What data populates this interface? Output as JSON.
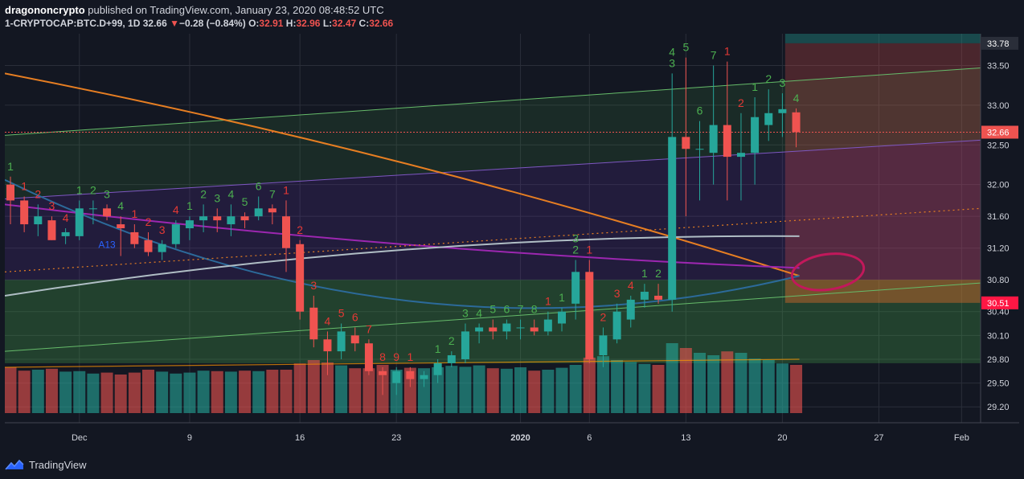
{
  "header": {
    "author": "dragononcrypto",
    "published_text": "published on TradingView.com, January 23, 2020 08:48:52 UTC",
    "symbol": "1-CRYPTOCAP:BTC.D+99, 1D",
    "last": "32.66",
    "change_arrow": "▼",
    "change": "−0.28 (−0.84%)",
    "o_label": "O:",
    "o": "32.91",
    "h_label": "H:",
    "h": "32.96",
    "l_label": "L:",
    "l": "32.47",
    "c_label": "C:",
    "c": "32.66"
  },
  "footer": {
    "brand": "TradingView",
    "logo_icon": "tradingview-logo-icon"
  },
  "colors": {
    "up": "#26a69a",
    "down": "#ef5350",
    "background": "#131722"
  },
  "chart_data": {
    "type": "candlestick",
    "title": "",
    "ylim": [
      29.0,
      33.9
    ],
    "y_ticks": [
      "33.50",
      "33.00",
      "32.50",
      "32.00",
      "31.60",
      "31.20",
      "30.80",
      "30.40",
      "30.10",
      "29.80",
      "29.50",
      "29.20"
    ],
    "x_ticks": [
      "Dec",
      "9",
      "16",
      "23",
      "2020",
      "6",
      "13",
      "20",
      "27",
      "Feb"
    ],
    "price_labels": [
      {
        "text": "33.78",
        "value": 33.78,
        "highlight": "none"
      },
      {
        "text": "32.66",
        "value": 32.66,
        "highlight": "last"
      },
      {
        "text": "30.51",
        "value": 30.51,
        "highlight": "target"
      }
    ],
    "candles": [
      {
        "o": 32.0,
        "h": 32.1,
        "l": 31.5,
        "c": 31.8
      },
      {
        "o": 31.8,
        "h": 31.85,
        "l": 31.4,
        "c": 31.5
      },
      {
        "o": 31.5,
        "h": 31.75,
        "l": 31.35,
        "c": 31.6
      },
      {
        "o": 31.55,
        "h": 31.6,
        "l": 31.3,
        "c": 31.3
      },
      {
        "o": 31.35,
        "h": 31.45,
        "l": 31.25,
        "c": 31.4
      },
      {
        "o": 31.35,
        "h": 31.8,
        "l": 31.3,
        "c": 31.7
      },
      {
        "o": 31.7,
        "h": 31.8,
        "l": 31.5,
        "c": 31.7
      },
      {
        "o": 31.7,
        "h": 31.75,
        "l": 31.55,
        "c": 31.6
      },
      {
        "o": 31.5,
        "h": 31.6,
        "l": 31.1,
        "c": 31.45
      },
      {
        "o": 31.4,
        "h": 31.5,
        "l": 31.2,
        "c": 31.25
      },
      {
        "o": 31.3,
        "h": 31.4,
        "l": 31.1,
        "c": 31.15
      },
      {
        "o": 31.15,
        "h": 31.3,
        "l": 31.05,
        "c": 31.25
      },
      {
        "o": 31.25,
        "h": 31.55,
        "l": 31.2,
        "c": 31.5
      },
      {
        "o": 31.45,
        "h": 31.6,
        "l": 31.3,
        "c": 31.55
      },
      {
        "o": 31.55,
        "h": 31.75,
        "l": 31.4,
        "c": 31.6
      },
      {
        "o": 31.6,
        "h": 31.7,
        "l": 31.4,
        "c": 31.55
      },
      {
        "o": 31.5,
        "h": 31.75,
        "l": 31.35,
        "c": 31.6
      },
      {
        "o": 31.6,
        "h": 31.65,
        "l": 31.45,
        "c": 31.55
      },
      {
        "o": 31.6,
        "h": 31.85,
        "l": 31.55,
        "c": 31.7
      },
      {
        "o": 31.7,
        "h": 31.75,
        "l": 31.5,
        "c": 31.65
      },
      {
        "o": 31.6,
        "h": 31.8,
        "l": 30.9,
        "c": 31.2
      },
      {
        "o": 31.25,
        "h": 31.3,
        "l": 30.3,
        "c": 30.4
      },
      {
        "o": 30.45,
        "h": 30.6,
        "l": 29.95,
        "c": 30.05
      },
      {
        "o": 30.05,
        "h": 30.15,
        "l": 29.6,
        "c": 29.9
      },
      {
        "o": 29.9,
        "h": 30.25,
        "l": 29.8,
        "c": 30.15
      },
      {
        "o": 30.1,
        "h": 30.2,
        "l": 29.9,
        "c": 30.0
      },
      {
        "o": 30.0,
        "h": 30.05,
        "l": 29.6,
        "c": 29.65
      },
      {
        "o": 29.65,
        "h": 29.7,
        "l": 29.35,
        "c": 29.6
      },
      {
        "o": 29.5,
        "h": 29.7,
        "l": 29.35,
        "c": 29.65
      },
      {
        "o": 29.65,
        "h": 29.7,
        "l": 29.45,
        "c": 29.55
      },
      {
        "o": 29.55,
        "h": 29.65,
        "l": 29.45,
        "c": 29.6
      },
      {
        "o": 29.6,
        "h": 29.8,
        "l": 29.5,
        "c": 29.75
      },
      {
        "o": 29.75,
        "h": 29.9,
        "l": 29.7,
        "c": 29.85
      },
      {
        "o": 29.8,
        "h": 30.25,
        "l": 29.75,
        "c": 30.15
      },
      {
        "o": 30.15,
        "h": 30.25,
        "l": 30.0,
        "c": 30.2
      },
      {
        "o": 30.2,
        "h": 30.3,
        "l": 30.05,
        "c": 30.15
      },
      {
        "o": 30.15,
        "h": 30.3,
        "l": 30.05,
        "c": 30.25
      },
      {
        "o": 30.2,
        "h": 30.3,
        "l": 30.05,
        "c": 30.2
      },
      {
        "o": 30.2,
        "h": 30.3,
        "l": 30.1,
        "c": 30.15
      },
      {
        "o": 30.15,
        "h": 30.4,
        "l": 30.1,
        "c": 30.3
      },
      {
        "o": 30.25,
        "h": 30.45,
        "l": 30.15,
        "c": 30.4
      },
      {
        "o": 30.5,
        "h": 31.05,
        "l": 30.3,
        "c": 30.9
      },
      {
        "o": 30.9,
        "h": 31.05,
        "l": 29.75,
        "c": 29.8
      },
      {
        "o": 29.85,
        "h": 30.2,
        "l": 29.7,
        "c": 30.1
      },
      {
        "o": 30.05,
        "h": 30.5,
        "l": 30.0,
        "c": 30.4
      },
      {
        "o": 30.3,
        "h": 30.6,
        "l": 30.2,
        "c": 30.55
      },
      {
        "o": 30.55,
        "h": 30.75,
        "l": 30.45,
        "c": 30.65
      },
      {
        "o": 30.6,
        "h": 30.75,
        "l": 30.5,
        "c": 30.55
      },
      {
        "o": 30.55,
        "h": 33.4,
        "l": 30.4,
        "c": 32.6
      },
      {
        "o": 32.6,
        "h": 33.6,
        "l": 31.6,
        "c": 32.45
      },
      {
        "o": 32.45,
        "h": 32.8,
        "l": 31.8,
        "c": 32.45
      },
      {
        "o": 32.4,
        "h": 33.5,
        "l": 32.0,
        "c": 32.75
      },
      {
        "o": 32.75,
        "h": 33.55,
        "l": 31.8,
        "c": 32.35
      },
      {
        "o": 32.35,
        "h": 32.9,
        "l": 31.8,
        "c": 32.4
      },
      {
        "o": 32.4,
        "h": 33.1,
        "l": 32.0,
        "c": 32.85
      },
      {
        "o": 32.75,
        "h": 33.2,
        "l": 32.55,
        "c": 32.9
      },
      {
        "o": 32.9,
        "h": 33.15,
        "l": 32.6,
        "c": 32.95
      },
      {
        "o": 32.91,
        "h": 32.96,
        "l": 32.47,
        "c": 32.66
      }
    ],
    "volume": [
      0.95,
      0.88,
      0.9,
      0.92,
      0.86,
      0.87,
      0.82,
      0.84,
      0.8,
      0.84,
      0.9,
      0.86,
      0.82,
      0.84,
      0.88,
      0.87,
      0.86,
      0.88,
      0.87,
      0.9,
      0.9,
      1.03,
      1.1,
      1.05,
      0.99,
      0.93,
      0.93,
      1.0,
      0.9,
      0.94,
      0.93,
      0.95,
      0.98,
      0.96,
      0.99,
      0.93,
      0.92,
      0.95,
      0.88,
      0.9,
      0.94,
      1.0,
      1.15,
      1.18,
      1.1,
      1.06,
      1.02,
      1.0,
      1.45,
      1.35,
      1.25,
      1.2,
      1.28,
      1.25,
      1.13,
      1.1,
      1.03,
      1.0
    ],
    "td_counts": [
      {
        "i": 0,
        "text": "1",
        "up": true
      },
      {
        "i": 1,
        "text": "1",
        "up": false
      },
      {
        "i": 2,
        "text": "2",
        "up": false
      },
      {
        "i": 3,
        "text": "3",
        "up": false
      },
      {
        "i": 4,
        "text": "4",
        "up": false
      },
      {
        "i": 5,
        "text": "1",
        "up": true
      },
      {
        "i": 6,
        "text": "2",
        "up": true
      },
      {
        "i": 7,
        "text": "3",
        "up": true
      },
      {
        "i": 8,
        "text": "4",
        "up": true
      },
      {
        "i": 9,
        "text": "1",
        "up": false
      },
      {
        "i": 10,
        "text": "2",
        "up": false
      },
      {
        "i": 11,
        "text": "3",
        "up": false
      },
      {
        "i": 12,
        "text": "4",
        "up": false
      },
      {
        "i": 13,
        "text": "1",
        "up": true
      },
      {
        "i": 14,
        "text": "2",
        "up": true
      },
      {
        "i": 15,
        "text": "3",
        "up": true
      },
      {
        "i": 16,
        "text": "4",
        "up": true
      },
      {
        "i": 17,
        "text": "5",
        "up": true
      },
      {
        "i": 18,
        "text": "6",
        "up": true
      },
      {
        "i": 19,
        "text": "7",
        "up": true
      },
      {
        "i": 20,
        "text": "1",
        "up": false
      },
      {
        "i": 21,
        "text": "2",
        "up": false
      },
      {
        "i": 22,
        "text": "3",
        "up": false
      },
      {
        "i": 23,
        "text": "4",
        "up": false
      },
      {
        "i": 24,
        "text": "5",
        "up": false
      },
      {
        "i": 25,
        "text": "6",
        "up": false
      },
      {
        "i": 26,
        "text": "7",
        "up": false
      },
      {
        "i": 27,
        "text": "8",
        "up": false
      },
      {
        "i": 28,
        "text": "9",
        "up": false
      },
      {
        "i": 29,
        "text": "1",
        "up": false
      },
      {
        "i": 31,
        "text": "1",
        "up": true
      },
      {
        "i": 32,
        "text": "2",
        "up": true
      },
      {
        "i": 33,
        "text": "3",
        "up": true
      },
      {
        "i": 34,
        "text": "4",
        "up": true
      },
      {
        "i": 35,
        "text": "5",
        "up": true
      },
      {
        "i": 36,
        "text": "6",
        "up": true
      },
      {
        "i": 37,
        "text": "7",
        "up": true
      },
      {
        "i": 38,
        "text": "8",
        "up": true
      },
      {
        "i": 39,
        "text": "1",
        "up": false
      },
      {
        "i": 40,
        "text": "1",
        "up": true
      },
      {
        "i": 41,
        "text": "2",
        "up": true
      },
      {
        "i": 41,
        "text": "3",
        "up": true
      },
      {
        "i": 42,
        "text": "1",
        "up": false
      },
      {
        "i": 43,
        "text": "2",
        "up": false
      },
      {
        "i": 44,
        "text": "3",
        "up": false
      },
      {
        "i": 45,
        "text": "4",
        "up": false
      },
      {
        "i": 46,
        "text": "1",
        "up": true
      },
      {
        "i": 47,
        "text": "2",
        "up": true
      },
      {
        "i": 48,
        "text": "3",
        "up": true
      },
      {
        "i": 48,
        "text": "4",
        "up": true
      },
      {
        "i": 49,
        "text": "5",
        "up": true
      },
      {
        "i": 50,
        "text": "6",
        "up": true
      },
      {
        "i": 51,
        "text": "7",
        "up": true
      },
      {
        "i": 52,
        "text": "1",
        "up": false
      },
      {
        "i": 53,
        "text": "2",
        "up": false
      },
      {
        "i": 54,
        "text": "1",
        "up": true
      },
      {
        "i": 55,
        "text": "2",
        "up": true
      },
      {
        "i": 56,
        "text": "3",
        "up": true
      },
      {
        "i": 57,
        "text": "4",
        "up": true
      }
    ],
    "annotations": [
      {
        "text": "A13",
        "i": 7,
        "value": 31.2
      }
    ],
    "overlay_values": {
      "channel_top": [
        32.62,
        33.47
      ],
      "channel_mid": [
        31.82,
        32.56
      ],
      "channel_bot": [
        29.9,
        30.76
      ],
      "sma_orange": [
        33.4,
        30.85
      ],
      "sma_blue": [
        32.06,
        30.85
      ],
      "sma_purple": [
        31.75,
        30.95
      ],
      "sma_gray": [
        30.6,
        31.35
      ],
      "dotted_orange": [
        30.9,
        31.7
      ],
      "volume_ma": 0.95
    }
  }
}
